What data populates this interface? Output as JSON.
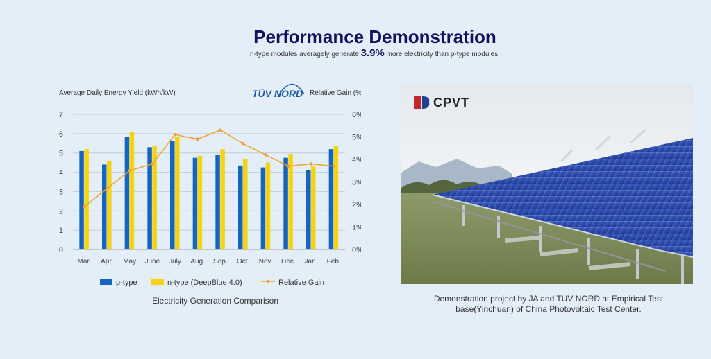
{
  "header": {
    "title": "Performance Demonstration",
    "subtitle_before": "n-type modules averagely generate ",
    "subtitle_highlight": "3.9%",
    "subtitle_after": " more electricity than p-type modules."
  },
  "chart_data": {
    "type": "bar",
    "categories": [
      "Mar.",
      "Apr.",
      "May",
      "June",
      "July",
      "Aug.",
      "Sep.",
      "Oct.",
      "Nov.",
      "Dec.",
      "Jan.",
      "Feb."
    ],
    "series": [
      {
        "name": "p-type",
        "kind": "bar",
        "axis": "left",
        "color": "#1565c0",
        "values": [
          5.1,
          4.4,
          5.85,
          5.3,
          5.6,
          4.75,
          4.9,
          4.35,
          4.25,
          4.75,
          4.1,
          5.2
        ]
      },
      {
        "name": "n-type (DeepBlue 4.0)",
        "kind": "bar",
        "axis": "left",
        "color": "#f5d40f",
        "values": [
          5.2,
          4.6,
          6.1,
          5.35,
          5.85,
          4.85,
          5.2,
          4.7,
          4.5,
          4.95,
          4.3,
          5.35
        ]
      },
      {
        "name": "Relative Gain",
        "kind": "line",
        "axis": "right",
        "color": "#f0a030",
        "values": [
          1.9,
          2.7,
          3.5,
          3.8,
          5.1,
          4.9,
          5.3,
          4.7,
          4.2,
          3.7,
          3.8,
          3.7
        ]
      }
    ],
    "ylabel_left": "Average Daily Energy Yield  (kWh/kW)",
    "ylabel_right": "Relative Gain  (%)",
    "ylim_left": [
      0,
      7
    ],
    "ylim_right": [
      0,
      6
    ],
    "yticks_left": [
      "0",
      "1",
      "2",
      "3",
      "4",
      "5",
      "6",
      "7"
    ],
    "yticks_right": [
      "0%",
      "1%",
      "2%",
      "3%",
      "4%",
      "5%",
      "6%"
    ],
    "grid": true,
    "legend_position": "bottom",
    "caption": "Electricity Generation Comparison"
  },
  "logos": {
    "tuv": "TÜV NORD",
    "cpvt": "CPVT"
  },
  "photo": {
    "caption": "Demonstration project by JA and TUV NORD at Empirical Test base(Yinchuan) of China Photovoltaic Test Center."
  },
  "colors": {
    "background": "#e3eef8",
    "title": "#111160",
    "p_type": "#1565c0",
    "n_type": "#f5d40f",
    "gain_line": "#f0a030"
  }
}
